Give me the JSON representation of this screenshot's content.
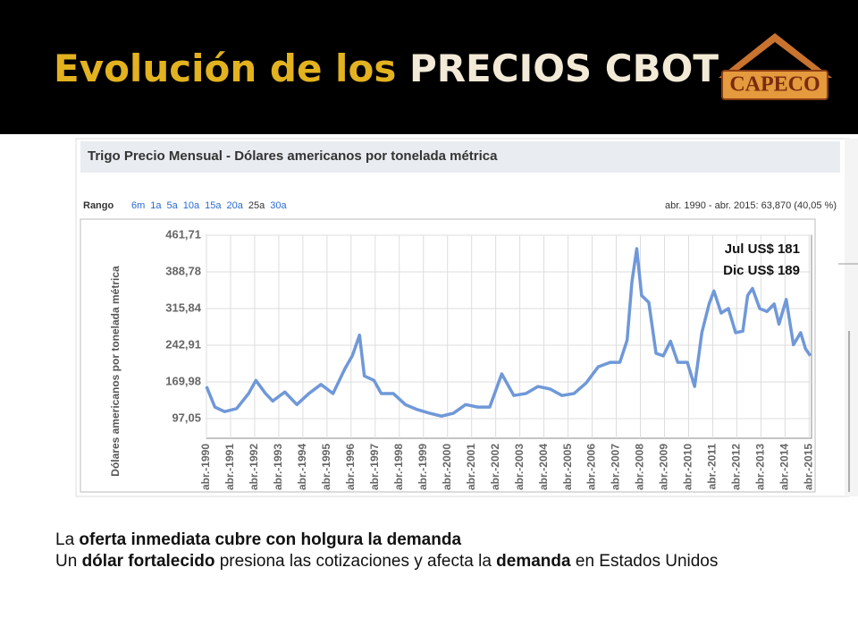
{
  "slide": {
    "title_part1": "Evolución de los",
    "title_part2": "PRECIOS CBOT",
    "logo": "CAPECO",
    "paragraphs": [
      [
        {
          "text": "La ",
          "bold": false
        },
        {
          "text": "oferta inmediata cubre con holgura la demanda",
          "bold": true
        }
      ],
      [
        {
          "text": "Un ",
          "bold": false
        },
        {
          "text": "dólar fortalecido",
          "bold": true
        },
        {
          "text": " presiona las cotizaciones y afecta la ",
          "bold": false
        },
        {
          "text": "demanda",
          "bold": true
        },
        {
          "text": " en Estados Unidos",
          "bold": false
        }
      ]
    ]
  },
  "chart_data": {
    "type": "line",
    "title": "Trigo Precio Mensual - Dólares americanos por tonelada métrica",
    "range_label": "Rango",
    "range_options": [
      "6m",
      "1a",
      "5a",
      "10a",
      "15a",
      "20a",
      "25a",
      "30a"
    ],
    "range_selected_index": 6,
    "summary": "abr. 1990 - abr. 2015: 63,870 (40,05 %)",
    "y_label": "Dólares americanos por tonelada métrica",
    "annotations": [
      "Jul US$ 181",
      "Dic US$ 189"
    ],
    "grid": true,
    "series": [
      {
        "name": "Trigo",
        "color": "#6f98d8",
        "x": [
          1990.25,
          1990.6,
          1991.0,
          1991.5,
          1992.0,
          1992.3,
          1992.7,
          1993.0,
          1993.5,
          1994.0,
          1994.5,
          1995.0,
          1995.5,
          1996.0,
          1996.3,
          1996.6,
          1996.8,
          1997.2,
          1997.5,
          1998.0,
          1998.5,
          1999.0,
          1999.5,
          2000.0,
          2000.5,
          2001.0,
          2001.5,
          2002.0,
          2002.5,
          2003.0,
          2003.5,
          2004.0,
          2004.5,
          2005.0,
          2005.5,
          2006.0,
          2006.5,
          2007.0,
          2007.4,
          2007.7,
          2007.9,
          2008.1,
          2008.3,
          2008.6,
          2008.9,
          2009.2,
          2009.5,
          2009.8,
          2010.2,
          2010.5,
          2010.8,
          2011.1,
          2011.3,
          2011.6,
          2011.9,
          2012.2,
          2012.5,
          2012.7,
          2012.9,
          2013.2,
          2013.5,
          2013.8,
          2014.0,
          2014.3,
          2014.6,
          2014.9,
          2015.1,
          2015.3
        ],
        "values": [
          161,
          120,
          111,
          117,
          147,
          173,
          147,
          132,
          150,
          125,
          147,
          165,
          147,
          197,
          222,
          263,
          182,
          173,
          147,
          147,
          125,
          115,
          108,
          102,
          108,
          125,
          120,
          120,
          186,
          143,
          147,
          161,
          156,
          143,
          147,
          168,
          200,
          209,
          209,
          253,
          369,
          435,
          342,
          328,
          227,
          222,
          251,
          209,
          209,
          161,
          268,
          325,
          351,
          307,
          316,
          268,
          271,
          342,
          356,
          316,
          310,
          325,
          285,
          334,
          244,
          268,
          236,
          222
        ]
      }
    ],
    "xlim": [
      1990.25,
      2015.35
    ],
    "xticks": [
      {
        "value": 1990.25,
        "label": "abr.-1990"
      },
      {
        "value": 1991.25,
        "label": "abr.-1991"
      },
      {
        "value": 1992.25,
        "label": "abr.-1992"
      },
      {
        "value": 1993.25,
        "label": "abr.-1993"
      },
      {
        "value": 1994.25,
        "label": "abr.-1994"
      },
      {
        "value": 1995.25,
        "label": "abr.-1995"
      },
      {
        "value": 1996.25,
        "label": "abr.-1996"
      },
      {
        "value": 1997.25,
        "label": "abr.-1997"
      },
      {
        "value": 1998.25,
        "label": "abr.-1998"
      },
      {
        "value": 1999.25,
        "label": "abr.-1999"
      },
      {
        "value": 2000.25,
        "label": "abr.-2000"
      },
      {
        "value": 2001.25,
        "label": "abr.-2001"
      },
      {
        "value": 2002.25,
        "label": "abr.-2002"
      },
      {
        "value": 2003.25,
        "label": "abr.-2003"
      },
      {
        "value": 2004.25,
        "label": "abr.-2004"
      },
      {
        "value": 2005.25,
        "label": "abr.-2005"
      },
      {
        "value": 2006.25,
        "label": "abr.-2006"
      },
      {
        "value": 2007.25,
        "label": "abr.-2007"
      },
      {
        "value": 2008.25,
        "label": "abr.-2008"
      },
      {
        "value": 2009.25,
        "label": "abr.-2009"
      },
      {
        "value": 2010.25,
        "label": "abr.-2010"
      },
      {
        "value": 2011.25,
        "label": "abr.-2011"
      },
      {
        "value": 2012.25,
        "label": "abr.-2012"
      },
      {
        "value": 2013.25,
        "label": "abr.-2013"
      },
      {
        "value": 2014.25,
        "label": "abr.-2014"
      },
      {
        "value": 2015.25,
        "label": "abr.-2015"
      }
    ],
    "ylim": [
      58,
      461.71
    ],
    "yticks": [
      {
        "value": 97.05,
        "label": "97,05"
      },
      {
        "value": 169.98,
        "label": "169,98"
      },
      {
        "value": 242.91,
        "label": "242,91"
      },
      {
        "value": 315.84,
        "label": "315,84"
      },
      {
        "value": 388.78,
        "label": "388,78"
      },
      {
        "value": 461.71,
        "label": "461,71"
      }
    ]
  }
}
